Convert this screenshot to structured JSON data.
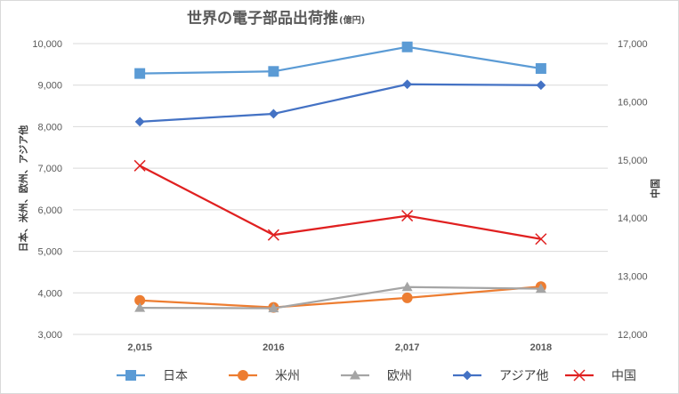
{
  "chart_data": {
    "type": "line",
    "title": "世界の電子部品出荷推",
    "title_suffix": "(億円)",
    "categories": [
      "2,015",
      "2016",
      "2,017",
      "2018"
    ],
    "y_left": {
      "label": "日本、米州、欧州、アジア他",
      "range": [
        3000,
        10000
      ],
      "ticks": [
        "3,000",
        "4,000",
        "5,000",
        "6,000",
        "7,000",
        "8,000",
        "9,000",
        "10,000"
      ]
    },
    "y_right": {
      "label": "中国",
      "range": [
        12000,
        17000
      ],
      "ticks": [
        "12,000",
        "13,000",
        "14,000",
        "15,000",
        "16,000",
        "17,000"
      ]
    },
    "series": [
      {
        "name": "日本",
        "axis": "left",
        "color": "#5b9bd5",
        "marker": "square",
        "values": [
          9280,
          9330,
          9920,
          9400
        ]
      },
      {
        "name": "米州",
        "axis": "left",
        "color": "#ed7d31",
        "marker": "circle",
        "values": [
          3820,
          3650,
          3880,
          4150
        ]
      },
      {
        "name": "欧州",
        "axis": "left",
        "color": "#a5a5a5",
        "marker": "triangle",
        "values": [
          3640,
          3630,
          4140,
          4100
        ]
      },
      {
        "name": "アジア他",
        "axis": "left",
        "color": "#4472c4",
        "marker": "diamond",
        "values": [
          8120,
          8310,
          9020,
          9000
        ]
      },
      {
        "name": "中国",
        "axis": "right",
        "color": "#e02020",
        "marker": "x",
        "values": [
          14900,
          13710,
          14040,
          13640
        ]
      }
    ],
    "grid": "horizontal",
    "legend_position": "bottom"
  }
}
